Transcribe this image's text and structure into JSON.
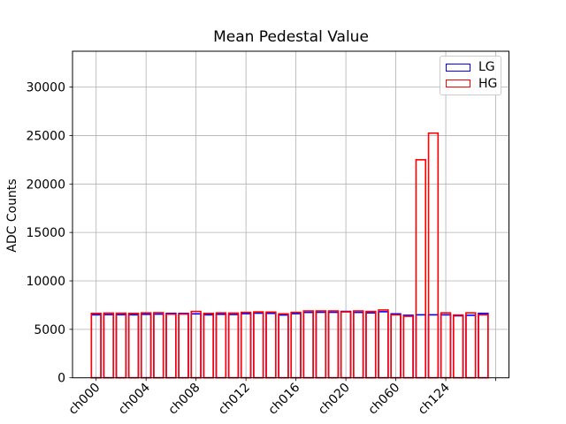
{
  "figure": {
    "background": "#ffffff"
  },
  "chart_data": {
    "type": "bar",
    "title": "Mean Pedestal Value",
    "xlabel": "",
    "ylabel": "ADC Counts",
    "categories": [
      "ch000",
      "ch001",
      "ch002",
      "ch003",
      "ch004",
      "ch005",
      "ch006",
      "ch007",
      "ch008",
      "ch009",
      "ch010",
      "ch011",
      "ch012",
      "ch013",
      "ch014",
      "ch015",
      "ch016",
      "ch017",
      "ch018",
      "ch019",
      "ch020",
      "ch021",
      "ch022",
      "ch023",
      "ch060",
      "ch061",
      "ch062",
      "ch063",
      "ch124",
      "ch125",
      "ch126",
      "ch127"
    ],
    "series": [
      {
        "name": "LG",
        "color": "#0000ff",
        "values": [
          6500,
          6520,
          6510,
          6500,
          6550,
          6570,
          6650,
          6640,
          6600,
          6500,
          6550,
          6530,
          6620,
          6670,
          6650,
          6480,
          6620,
          6750,
          6760,
          6760,
          6850,
          6750,
          6700,
          6820,
          6600,
          6450,
          6500,
          6500,
          6500,
          6400,
          6450,
          6650
        ]
      },
      {
        "name": "HG",
        "color": "#ff0000",
        "values": [
          6650,
          6680,
          6670,
          6650,
          6700,
          6720,
          6560,
          6570,
          6850,
          6650,
          6700,
          6680,
          6750,
          6800,
          6780,
          6600,
          6750,
          6900,
          6900,
          6900,
          6800,
          6900,
          6850,
          7000,
          6500,
          6350,
          22500,
          25250,
          6700,
          6480,
          6700,
          6500
        ]
      }
    ],
    "bar_style": "outline",
    "x_tick_labels": [
      "ch000",
      "ch004",
      "ch008",
      "ch012",
      "ch016",
      "ch020",
      "ch060",
      "ch124"
    ],
    "x_tick_step": 4,
    "x_tick_rotation": 45,
    "yticks": [
      0,
      5000,
      10000,
      15000,
      20000,
      25000,
      30000
    ],
    "ylim": [
      0,
      33700
    ],
    "grid": true,
    "grid_color": "#b0b0b0",
    "axis_color": "#000000",
    "legend": {
      "position": "upper right",
      "entries": [
        "LG",
        "HG"
      ]
    }
  }
}
